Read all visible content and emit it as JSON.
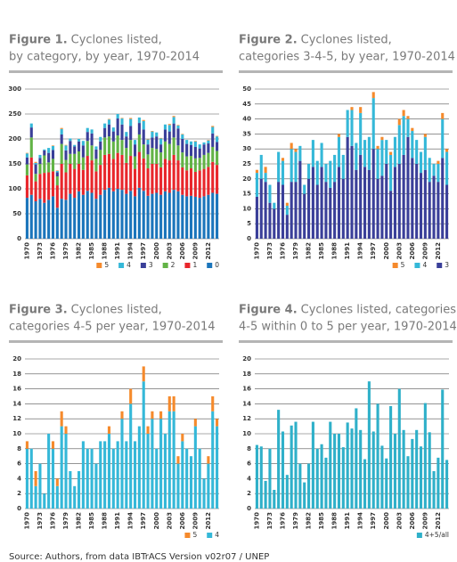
{
  "chart_data": [
    {
      "type": "bar",
      "stacked": true,
      "figure": "Figure 1.",
      "title": [
        "Cyclones listed,",
        "by category, by year, 1970-2014"
      ],
      "categories": [
        "1970",
        null,
        null,
        "1973",
        null,
        null,
        "1976",
        null,
        null,
        "1979",
        null,
        null,
        "1982",
        null,
        null,
        "1985",
        null,
        null,
        "1988",
        null,
        null,
        "1991",
        null,
        null,
        "1994",
        null,
        null,
        "1997",
        null,
        null,
        "2000",
        null,
        null,
        "2003",
        null,
        null,
        "2006",
        null,
        null,
        "2009",
        null,
        null,
        "2012",
        null,
        null
      ],
      "ylim": [
        0,
        300
      ],
      "yticks": [
        0,
        50,
        100,
        150,
        200,
        250,
        300
      ],
      "grid": true,
      "legend": "bottom-right",
      "series": [
        {
          "name": "0",
          "color": "#1b75bb",
          "values": [
            82,
            88,
            75,
            80,
            72,
            78,
            85,
            62,
            80,
            78,
            90,
            82,
            95,
            88,
            96,
            92,
            80,
            88,
            98,
            102,
            95,
            100,
            98,
            90,
            96,
            85,
            102,
            96,
            86,
            90,
            92,
            88,
            95,
            92,
            98,
            95,
            88,
            85,
            86,
            84,
            82,
            85,
            88,
            92,
            90
          ]
        },
        {
          "name": "1",
          "color": "#e8262b",
          "values": [
            45,
            75,
            40,
            50,
            60,
            55,
            50,
            45,
            70,
            55,
            60,
            58,
            55,
            50,
            70,
            65,
            55,
            60,
            70,
            68,
            65,
            72,
            70,
            62,
            70,
            55,
            72,
            65,
            55,
            60,
            58,
            55,
            65,
            65,
            70,
            62,
            55,
            52,
            55,
            50,
            55,
            55,
            56,
            62,
            58
          ]
        },
        {
          "name": "2",
          "color": "#62b346",
          "values": [
            22,
            40,
            15,
            20,
            35,
            20,
            25,
            18,
            40,
            25,
            20,
            30,
            25,
            25,
            30,
            30,
            25,
            30,
            35,
            35,
            35,
            35,
            30,
            30,
            32,
            25,
            35,
            28,
            28,
            32,
            30,
            30,
            35,
            33,
            35,
            30,
            30,
            28,
            25,
            27,
            25,
            28,
            28,
            30,
            28
          ]
        },
        {
          "name": "3",
          "color": "#3a3f99",
          "values": [
            14,
            20,
            19,
            12,
            10,
            19,
            18,
            8,
            19,
            19,
            26,
            15,
            20,
            24,
            18,
            24,
            19,
            17,
            19,
            24,
            20,
            34,
            31,
            23,
            28,
            24,
            23,
            30,
            20,
            21,
            25,
            16,
            24,
            25,
            28,
            34,
            27,
            25,
            22,
            23,
            19,
            21,
            19,
            27,
            18
          ]
        },
        {
          "name": "4",
          "color": "#35b8d8",
          "values": [
            8,
            8,
            3,
            6,
            2,
            10,
            8,
            3,
            11,
            10,
            5,
            3,
            5,
            9,
            8,
            8,
            6,
            9,
            9,
            10,
            8,
            9,
            12,
            9,
            14,
            9,
            11,
            17,
            10,
            12,
            8,
            12,
            10,
            13,
            13,
            6,
            9,
            8,
            7,
            11,
            8,
            4,
            6,
            13,
            11
          ]
        },
        {
          "name": "5",
          "color": "#f58a2c",
          "values": [
            1,
            0,
            2,
            0,
            0,
            0,
            1,
            1,
            2,
            1,
            0,
            0,
            0,
            0,
            0,
            0,
            0,
            0,
            0,
            1,
            0,
            0,
            1,
            0,
            2,
            0,
            0,
            2,
            1,
            1,
            0,
            1,
            0,
            2,
            2,
            1,
            1,
            0,
            0,
            1,
            0,
            0,
            1,
            2,
            1
          ]
        }
      ]
    },
    {
      "type": "bar",
      "stacked": true,
      "figure": "Figure 2.",
      "title": [
        "Cyclones listed,",
        "categories 3-4-5, by year, 1970-2014"
      ],
      "categories": [
        "1970",
        null,
        null,
        "1973",
        null,
        null,
        "1976",
        null,
        null,
        "1979",
        null,
        null,
        "1982",
        null,
        null,
        "1985",
        null,
        null,
        "1988",
        null,
        null,
        "1991",
        null,
        null,
        "1994",
        null,
        null,
        "1997",
        null,
        null,
        "2000",
        null,
        null,
        "2003",
        null,
        null,
        "2006",
        null,
        null,
        "2009",
        null,
        null,
        "2012",
        null,
        null
      ],
      "ylim": [
        0,
        50
      ],
      "yticks": [
        0,
        5,
        10,
        15,
        20,
        25,
        30,
        35,
        40,
        45,
        50
      ],
      "grid": true,
      "legend": "bottom-right",
      "series": [
        {
          "name": "3",
          "color": "#3a3f99",
          "values": [
            14,
            20,
            19,
            12,
            10,
            19,
            18,
            8,
            19,
            19,
            26,
            15,
            20,
            24,
            18,
            24,
            19,
            17,
            19,
            24,
            20,
            34,
            31,
            23,
            28,
            24,
            23,
            30,
            20,
            21,
            25,
            16,
            24,
            25,
            28,
            34,
            27,
            25,
            22,
            23,
            19,
            21,
            19,
            27,
            18
          ]
        },
        {
          "name": "4",
          "color": "#35b8d8",
          "values": [
            8,
            8,
            3,
            6,
            2,
            10,
            8,
            3,
            11,
            10,
            5,
            3,
            5,
            9,
            8,
            8,
            6,
            9,
            9,
            10,
            8,
            9,
            12,
            9,
            14,
            9,
            11,
            17,
            10,
            12,
            8,
            12,
            10,
            13,
            13,
            6,
            9,
            8,
            7,
            11,
            8,
            4,
            6,
            13,
            11
          ]
        },
        {
          "name": "5",
          "color": "#f58a2c",
          "values": [
            1,
            0,
            2,
            0,
            0,
            0,
            1,
            1,
            2,
            1,
            0,
            0,
            0,
            0,
            0,
            0,
            0,
            0,
            0,
            1,
            0,
            0,
            1,
            0,
            2,
            0,
            0,
            2,
            1,
            1,
            0,
            1,
            0,
            2,
            2,
            1,
            1,
            0,
            0,
            1,
            0,
            0,
            1,
            2,
            1
          ]
        }
      ]
    },
    {
      "type": "bar",
      "stacked": true,
      "figure": "Figure 3.",
      "title": [
        "Cyclones listed,",
        "categories 4-5 per year, 1970-2014"
      ],
      "categories": [
        "1970",
        null,
        null,
        "1973",
        null,
        null,
        "1976",
        null,
        null,
        "1979",
        null,
        null,
        "1982",
        null,
        null,
        "1985",
        null,
        null,
        "1988",
        null,
        null,
        "1991",
        null,
        null,
        "1994",
        null,
        null,
        "1997",
        null,
        null,
        "2000",
        null,
        null,
        "2003",
        null,
        null,
        "2006",
        null,
        null,
        "2009",
        null,
        null,
        "2012",
        null,
        null
      ],
      "ylim": [
        0,
        20
      ],
      "yticks": [
        0,
        2,
        4,
        6,
        8,
        10,
        12,
        14,
        16,
        18,
        20
      ],
      "grid": true,
      "legend": "bottom-right",
      "series": [
        {
          "name": "4",
          "color": "#35b8d8",
          "values": [
            8,
            8,
            3,
            6,
            2,
            10,
            8,
            3,
            11,
            10,
            5,
            3,
            5,
            9,
            8,
            8,
            6,
            9,
            9,
            10,
            8,
            9,
            12,
            9,
            14,
            9,
            11,
            17,
            10,
            12,
            8,
            12,
            10,
            13,
            13,
            6,
            9,
            8,
            7,
            11,
            8,
            4,
            6,
            13,
            11
          ]
        },
        {
          "name": "5",
          "color": "#f58a2c",
          "values": [
            1,
            0,
            2,
            0,
            0,
            0,
            1,
            1,
            2,
            1,
            0,
            0,
            0,
            0,
            0,
            0,
            0,
            0,
            0,
            1,
            0,
            0,
            1,
            0,
            2,
            0,
            0,
            2,
            1,
            1,
            0,
            1,
            0,
            2,
            2,
            1,
            1,
            0,
            0,
            1,
            0,
            0,
            1,
            2,
            1
          ]
        }
      ]
    },
    {
      "type": "bar",
      "stacked": true,
      "figure": "Figure 4.",
      "title": [
        "Cyclones listed, categories",
        "4-5 within 0 to 5 per year, 1970-2014"
      ],
      "categories": [
        "1970",
        null,
        null,
        "1973",
        null,
        null,
        "1976",
        null,
        null,
        "1979",
        null,
        null,
        "1982",
        null,
        null,
        "1985",
        null,
        null,
        "1988",
        null,
        null,
        "1991",
        null,
        null,
        "1994",
        null,
        null,
        "1997",
        null,
        null,
        "2000",
        null,
        null,
        "2003",
        null,
        null,
        "2006",
        null,
        null,
        "2009",
        null,
        null,
        "2012",
        null,
        null
      ],
      "ylim": [
        0,
        20
      ],
      "yticks": [
        0,
        2,
        4,
        6,
        8,
        10,
        12,
        14,
        16,
        18,
        20
      ],
      "grid": true,
      "legend": "bottom-right",
      "series": [
        {
          "name": "4+5/all",
          "color": "#2fb0c9",
          "values": [
            8.5,
            8.3,
            3.7,
            8,
            2.5,
            13.2,
            10.3,
            4.5,
            11.1,
            11.6,
            6,
            3.5,
            6,
            11.6,
            8,
            8.6,
            6.8,
            11.6,
            10,
            10,
            8.2,
            11.5,
            10.7,
            13.4,
            10.5,
            6.6,
            17,
            10.3,
            14,
            8.4,
            6.7,
            13.7,
            10,
            16,
            10.5,
            7,
            9.3,
            10.5,
            8.3,
            14.1,
            10.2,
            5,
            6.8,
            15.9,
            6.5
          ]
        }
      ]
    }
  ],
  "source": "Source: Authors, from data IBTrACS Version v02r07 / UNEP"
}
